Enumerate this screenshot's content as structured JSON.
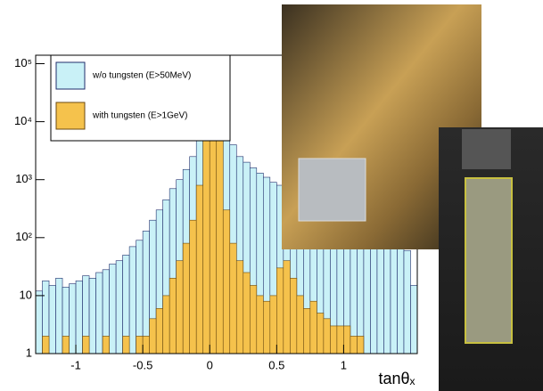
{
  "chart_data": {
    "type": "histogram",
    "bins": [
      -1.3,
      -1.25,
      -1.2,
      -1.15,
      -1.1,
      -1.05,
      -1.0,
      -0.95,
      -0.9,
      -0.85,
      -0.8,
      -0.75,
      -0.7,
      -0.65,
      -0.6,
      -0.55,
      -0.5,
      -0.45,
      -0.4,
      -0.35,
      -0.3,
      -0.25,
      -0.2,
      -0.15,
      -0.1,
      -0.05,
      0,
      0.05,
      0.1,
      0.15,
      0.2,
      0.25,
      0.3,
      0.35,
      0.4,
      0.45,
      0.5,
      0.55,
      0.6,
      0.65,
      0.7,
      0.75,
      0.8,
      0.85,
      0.9,
      0.95,
      1.0,
      1.05,
      1.1,
      1.15,
      1.2,
      1.25,
      1.3,
      1.35,
      1.4,
      1.45,
      1.5,
      1.55
    ],
    "series": [
      {
        "name": "w/o tungsten (E>50MeV)",
        "color": "#c9f1f7",
        "edge": "#1f2d6b",
        "values": [
          12,
          18,
          15,
          20,
          14,
          16,
          18,
          22,
          20,
          25,
          28,
          35,
          40,
          50,
          70,
          90,
          130,
          200,
          300,
          450,
          700,
          1000,
          1500,
          2500,
          5000,
          20000,
          80000,
          30000,
          8000,
          4000,
          2500,
          2000,
          1600,
          1300,
          1100,
          900,
          800,
          700,
          600,
          550,
          500,
          450,
          400,
          350,
          300,
          280,
          260,
          240,
          220,
          200,
          180,
          170,
          160,
          150,
          120,
          60,
          15
        ]
      },
      {
        "name": "with tungsten (E>1GeV)",
        "color": "#f5c24c",
        "edge": "#6b4a10",
        "values": [
          1,
          2,
          1,
          1,
          2,
          1,
          1,
          2,
          1,
          1,
          2,
          1,
          1,
          2,
          1,
          2,
          2,
          4,
          6,
          10,
          20,
          40,
          80,
          200,
          800,
          8000,
          50000,
          6000,
          300,
          80,
          40,
          25,
          15,
          10,
          8,
          10,
          30,
          40,
          20,
          10,
          6,
          8,
          5,
          4,
          3,
          3,
          3,
          2,
          2,
          1,
          1,
          1,
          1,
          1,
          1,
          1,
          1
        ]
      }
    ],
    "x_label": "tanθₓ",
    "xlim": [
      -1.3,
      1.55
    ],
    "xticks": [
      -1,
      -0.5,
      0,
      0.5,
      1
    ],
    "ylim": [
      1,
      140000
    ],
    "log_y": true,
    "yticks": [
      1,
      10,
      {
        "value": 100,
        "label": "10²"
      },
      {
        "value": 1000,
        "label": "10³"
      },
      {
        "value": 10000,
        "label": "10⁴"
      },
      {
        "value": 100000,
        "label": "10⁵"
      }
    ]
  }
}
